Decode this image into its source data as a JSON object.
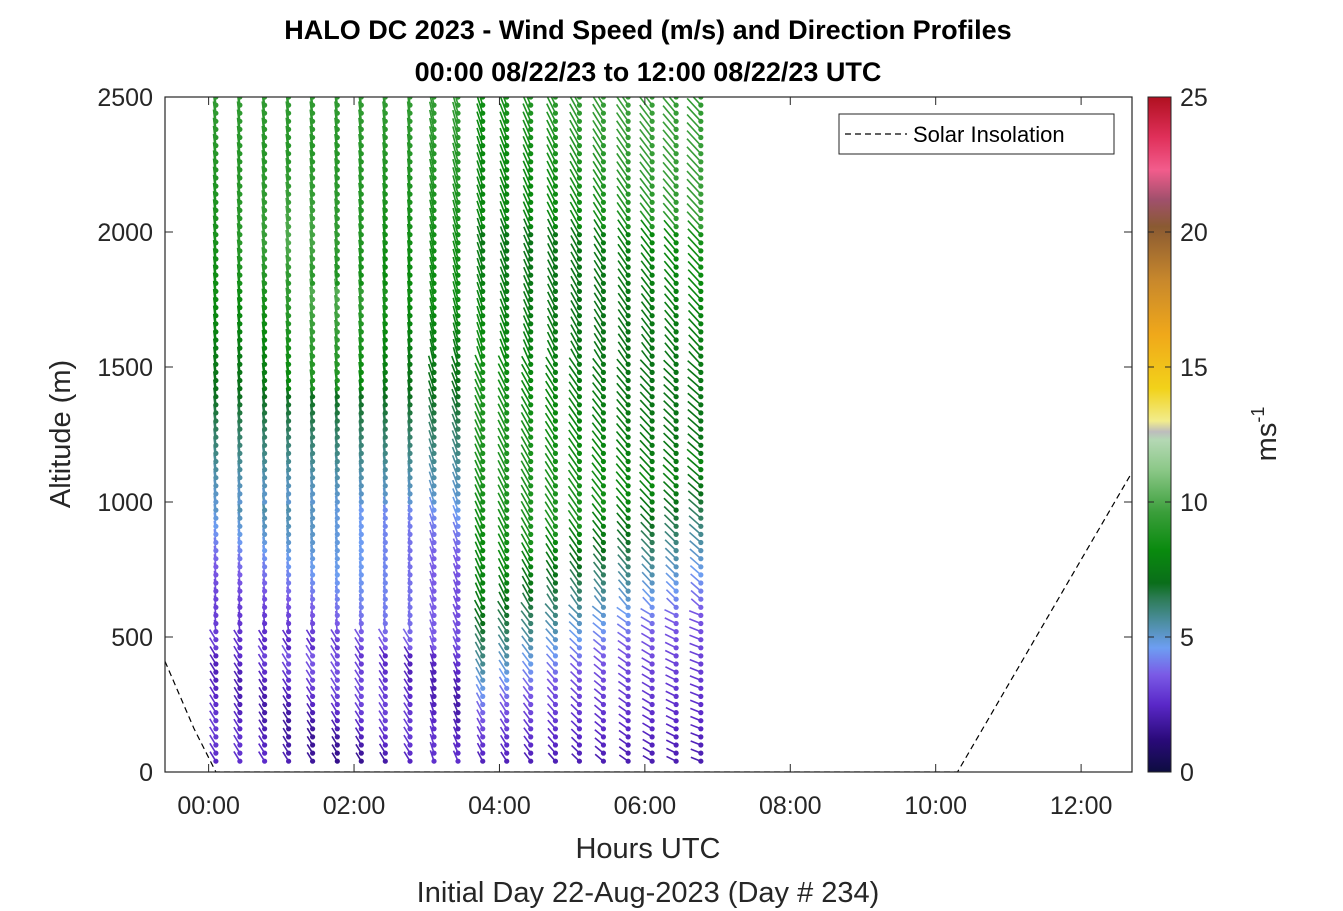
{
  "chart_data": {
    "type": "wind-barb-profile",
    "title": "HALO DC 2023 - Wind Speed (m/s) and Direction Profiles",
    "subtitle": "00:00 08/22/23 to 12:00 08/22/23  UTC",
    "xlabel": "Hours UTC",
    "xlabel2": "Initial Day 22-Aug-2023 (Day # 234)",
    "ylabel": "Altitude (m)",
    "xlim": [
      -0.6,
      12.7
    ],
    "ylim": [
      0,
      2500
    ],
    "x_ticks": [
      0,
      2,
      4,
      6,
      8,
      10,
      12
    ],
    "x_tick_labels": [
      "00:00",
      "02:00",
      "04:00",
      "06:00",
      "08:00",
      "10:00",
      "12:00"
    ],
    "y_ticks": [
      0,
      500,
      1000,
      1500,
      2000,
      2500
    ],
    "y_tick_labels": [
      "0",
      "500",
      "1000",
      "1500",
      "2000",
      "2500"
    ],
    "grid": false,
    "legend": {
      "position": "top-right",
      "entries": [
        "Solar Insolation"
      ]
    },
    "colorbar": {
      "label": "ms",
      "label_exponent": "-1",
      "range": [
        0,
        25
      ],
      "ticks": [
        0,
        5,
        10,
        15,
        20,
        25
      ],
      "tick_labels": [
        "0",
        "5",
        "10",
        "15",
        "20",
        "25"
      ],
      "stops": [
        {
          "v": 0,
          "color": "#0d0d40"
        },
        {
          "v": 1.2,
          "color": "#2a0a7a"
        },
        {
          "v": 2.5,
          "color": "#5a28c8"
        },
        {
          "v": 3.6,
          "color": "#7a5ae6"
        },
        {
          "v": 4.6,
          "color": "#6d9ef2"
        },
        {
          "v": 5.5,
          "color": "#4e8fa6"
        },
        {
          "v": 6.4,
          "color": "#2e7c58"
        },
        {
          "v": 7.0,
          "color": "#0a6e1a"
        },
        {
          "v": 8.2,
          "color": "#098a0e"
        },
        {
          "v": 9.6,
          "color": "#3a9e3a"
        },
        {
          "v": 11.2,
          "color": "#8cc888"
        },
        {
          "v": 12.3,
          "color": "#b4d8b4"
        },
        {
          "v": 12.6,
          "color": "#bdbdbd"
        },
        {
          "v": 13.0,
          "color": "#f2ec8c"
        },
        {
          "v": 14.2,
          "color": "#f2d21a"
        },
        {
          "v": 16.2,
          "color": "#f0a81a"
        },
        {
          "v": 18.2,
          "color": "#c8882c"
        },
        {
          "v": 20.2,
          "color": "#8a5a32"
        },
        {
          "v": 21.2,
          "color": "#a0506c"
        },
        {
          "v": 22.3,
          "color": "#f25c8c"
        },
        {
          "v": 23.5,
          "color": "#e0305a"
        },
        {
          "v": 25,
          "color": "#b01020"
        }
      ]
    },
    "solar_insolation": {
      "name": "Solar Insolation",
      "x": [
        -0.6,
        -0.2,
        0.1,
        10.3,
        12.7
      ],
      "y": [
        410,
        160,
        0,
        0,
        1110
      ]
    },
    "profiles": {
      "times": [
        0.1,
        0.43,
        0.77,
        1.1,
        1.43,
        1.77,
        2.1,
        2.43,
        2.77,
        3.1,
        3.43,
        3.77,
        4.1,
        4.43,
        4.77,
        5.1,
        5.43,
        5.77,
        6.1,
        6.43,
        6.77
      ],
      "altitude_start": 40,
      "altitude_step": 30,
      "altitude_end": 2500,
      "wind_speed_summary": "low level jet ~2-4 m/s below ~600 m early, 6-12 m/s aloft; after 04:00 speeds 5-10 m/s above ~300 m"
    }
  }
}
